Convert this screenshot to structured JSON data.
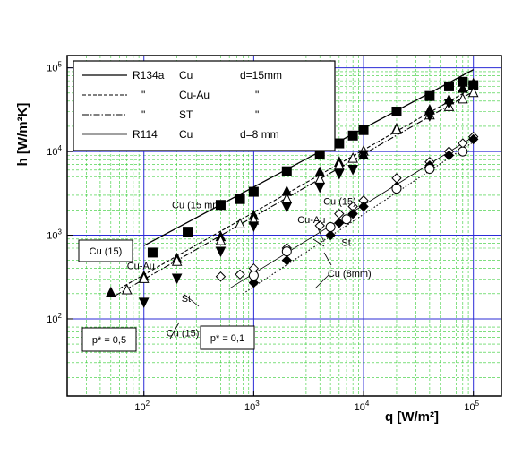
{
  "chart_data": {
    "type": "scatter",
    "title": "",
    "xlabel": "q [W/m²]",
    "ylabel": "h [W/m²K]",
    "x_scale": "log",
    "y_scale": "log",
    "xlim": [
      20,
      180000
    ],
    "ylim": [
      12,
      140000
    ],
    "x_major_ticks": [
      {
        "value": 100,
        "base": "10",
        "exp": "2"
      },
      {
        "value": 1000,
        "base": "10",
        "exp": "3"
      },
      {
        "value": 10000,
        "base": "10",
        "exp": "4"
      },
      {
        "value": 100000,
        "base": "10",
        "exp": "5"
      }
    ],
    "y_major_ticks": [
      {
        "value": 100,
        "base": "10",
        "exp": "2"
      },
      {
        "value": 1000,
        "base": "10",
        "exp": "3"
      },
      {
        "value": 10000,
        "base": "10",
        "exp": "4"
      },
      {
        "value": 100000,
        "base": "10",
        "exp": "5"
      }
    ],
    "grid": true,
    "legend_position": "top-left",
    "legend": [
      {
        "fluid": "R134a",
        "surface": "Cu",
        "diameter": "d=15mm",
        "style": "solid"
      },
      {
        "fluid": "\"",
        "surface": "Cu-Au",
        "diameter": "\"",
        "style": "dashed"
      },
      {
        "fluid": "\"",
        "surface": "ST",
        "diameter": "\"",
        "style": "dashdot"
      },
      {
        "fluid": "R114",
        "surface": "Cu",
        "diameter": "d=8 mm",
        "style": "thin"
      }
    ],
    "series": [
      {
        "marker": "filled-square",
        "x": [
          120,
          250,
          500,
          750,
          1000,
          2000,
          4000,
          6000,
          8000,
          10000,
          20000,
          40000,
          60000,
          80000,
          100000
        ],
        "y": [
          620,
          1100,
          2300,
          2700,
          3300,
          5800,
          9400,
          12500,
          15500,
          18000,
          30000,
          46000,
          60000,
          68000,
          62000
        ]
      },
      {
        "marker": "filled-triangle-up",
        "x": [
          50,
          100,
          200,
          500,
          1000,
          2000,
          4000,
          6000,
          10000,
          20000,
          40000,
          60000,
          80000,
          100000
        ],
        "y": [
          205,
          320,
          520,
          950,
          1700,
          3300,
          5600,
          7400,
          9000,
          18500,
          31000,
          41000,
          56000,
          64000
        ]
      },
      {
        "marker": "open-triangle-up",
        "x": [
          70,
          100,
          200,
          500,
          750,
          1000,
          2000,
          4000,
          6000,
          8000,
          10000,
          20000,
          40000,
          60000,
          80000,
          100000
        ],
        "y": [
          220,
          300,
          480,
          850,
          1350,
          1500,
          2700,
          4600,
          6800,
          8200,
          10000,
          18000,
          27000,
          34000,
          42000,
          50000
        ]
      },
      {
        "marker": "filled-triangle-down",
        "x": [
          100,
          200,
          500,
          1000,
          2000,
          4000,
          6000,
          8000,
          10000,
          40000,
          60000
        ],
        "y": [
          160,
          310,
          650,
          1300,
          2200,
          3800,
          5500,
          6200,
          9300,
          27000,
          38000
        ]
      },
      {
        "marker": "open-diamond",
        "x": [
          500,
          750,
          1000,
          2000,
          4000,
          6000,
          8000,
          10000,
          20000,
          40000,
          60000,
          80000,
          100000
        ],
        "y": [
          320,
          340,
          400,
          700,
          1300,
          1800,
          2200,
          2600,
          4800,
          7500,
          10000,
          12500,
          15000
        ]
      },
      {
        "marker": "filled-diamond",
        "x": [
          1000,
          2000,
          5000,
          6000,
          8000,
          10000,
          20000,
          40000,
          60000,
          100000
        ],
        "y": [
          270,
          500,
          1000,
          1400,
          1800,
          2200,
          3800,
          6800,
          9000,
          14000
        ]
      },
      {
        "marker": "open-circle",
        "x": [
          1000,
          2000,
          5000,
          7000,
          20000,
          40000,
          80000
        ],
        "y": [
          330,
          640,
          1250,
          1550,
          3600,
          6200,
          10000
        ]
      }
    ],
    "fit_lines": [
      {
        "style": "solid",
        "x": [
          100,
          100000
        ],
        "y": [
          750,
          95000
        ]
      },
      {
        "style": "dashed",
        "x": [
          60,
          100000
        ],
        "y": [
          230,
          58000
        ]
      },
      {
        "style": "dashdot",
        "x": [
          55,
          100000
        ],
        "y": [
          190,
          52000
        ]
      },
      {
        "style": "thin",
        "x": [
          600,
          100000
        ],
        "y": [
          230,
          15000
        ]
      },
      {
        "style": "dotted",
        "x": [
          800,
          100000
        ],
        "y": [
          200,
          13000
        ]
      }
    ],
    "annotations": [
      {
        "text": "Cu (15 mm)",
        "x": 180,
        "y": 2100
      },
      {
        "text": "Cu-Au",
        "x": 70,
        "y": 390
      },
      {
        "text": "St",
        "x": 220,
        "y": 160
      },
      {
        "text": "Cu (15)",
        "x": 160,
        "y": 62
      },
      {
        "text": "Cu (15)",
        "x": 4300,
        "y": 2300
      },
      {
        "text": "Cu-Au",
        "x": 2500,
        "y": 1400
      },
      {
        "text": "St",
        "x": 6300,
        "y": 740
      },
      {
        "text": "Cu (8mm)",
        "x": 4700,
        "y": 320
      }
    ],
    "boxed_labels": [
      {
        "text": "Cu (15)"
      },
      {
        "text": "p* = 0,5"
      },
      {
        "text": "p* = 0,1"
      }
    ]
  }
}
